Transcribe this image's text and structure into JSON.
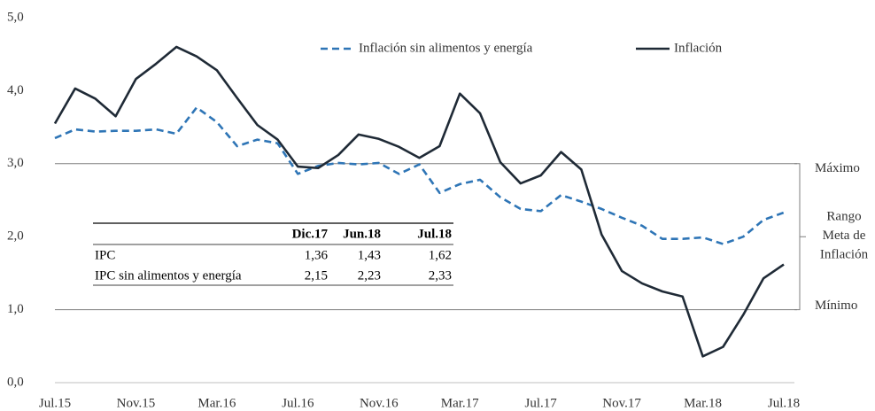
{
  "chart_data": {
    "type": "line",
    "categories": [
      "Jul.15",
      null,
      null,
      null,
      "Nov.15",
      null,
      null,
      null,
      "Mar.16",
      null,
      null,
      null,
      "Jul.16",
      null,
      null,
      null,
      "Nov.16",
      null,
      null,
      null,
      "Mar.17",
      null,
      null,
      null,
      "Jul.17",
      null,
      null,
      null,
      "Nov.17",
      null,
      null,
      null,
      "Mar.18",
      null,
      null,
      null,
      "Jul.18"
    ],
    "series": [
      {
        "name": "Inflación sin alimentos y energía",
        "color": "#2e75b6",
        "dashed": true,
        "values": [
          3.35,
          3.47,
          3.44,
          3.45,
          3.45,
          3.47,
          3.41,
          3.77,
          3.57,
          3.24,
          3.33,
          3.28,
          2.86,
          2.97,
          3.01,
          2.99,
          3.01,
          2.86,
          2.99,
          2.6,
          2.72,
          2.78,
          2.54,
          2.38,
          2.35,
          2.57,
          2.48,
          2.38,
          2.26,
          2.15,
          1.97,
          1.97,
          1.99,
          1.9,
          2.0,
          2.23,
          2.33
        ]
      },
      {
        "name": "Inflación",
        "color": "#1f2a36",
        "dashed": false,
        "values": [
          3.55,
          4.03,
          3.89,
          3.65,
          4.16,
          4.37,
          4.6,
          4.47,
          4.28,
          3.9,
          3.53,
          3.33,
          2.96,
          2.94,
          3.12,
          3.4,
          3.34,
          3.23,
          3.08,
          3.24,
          3.96,
          3.69,
          3.02,
          2.73,
          2.84,
          3.16,
          2.92,
          2.03,
          1.53,
          1.36,
          1.25,
          1.18,
          0.36,
          0.49,
          0.93,
          1.43,
          1.62
        ]
      }
    ],
    "ylim": [
      0,
      5
    ],
    "yticks": [
      {
        "value": 0,
        "label": "0,0"
      },
      {
        "value": 1,
        "label": "1,0"
      },
      {
        "value": 2,
        "label": "2,0"
      },
      {
        "value": 3,
        "label": "3,0"
      },
      {
        "value": 4,
        "label": "4,0"
      },
      {
        "value": 5,
        "label": "5,0"
      }
    ],
    "legend": "top",
    "reference_lines": [
      {
        "value": 3,
        "label": "Máximo"
      },
      {
        "value": 1,
        "label": "Mínimo"
      }
    ],
    "range_label": [
      "Rango",
      "Meta de",
      "Inflación"
    ],
    "table": {
      "columns": [
        "Dic.17",
        "Jun.18",
        "Jul.18"
      ],
      "rows": [
        {
          "label": "IPC",
          "values": [
            "1,36",
            "1,43",
            "1,62"
          ]
        },
        {
          "label": "IPC sin alimentos y energía",
          "values": [
            "2,15",
            "2,23",
            "2,33"
          ]
        }
      ]
    }
  }
}
